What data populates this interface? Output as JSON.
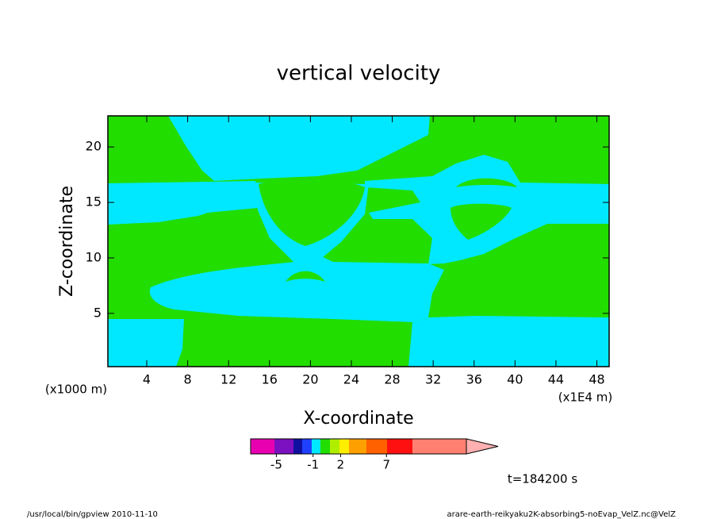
{
  "chart_data": {
    "type": "contour",
    "title": "vertical velocity",
    "x_label": "X-coordinate",
    "y_label": "Z-coordinate",
    "y_unit": "(x1000 m)",
    "x_unit": "(x1E4 m)",
    "xlim": [
      0.2,
      49.2
    ],
    "xticks": [
      4,
      8,
      12,
      16,
      20,
      24,
      28,
      32,
      36,
      40,
      44,
      48
    ],
    "ylim": [
      0.2,
      22.8
    ],
    "yticks": [
      5,
      10,
      15,
      20
    ],
    "colorbar": {
      "lim": [
        -7.8,
        15.7
      ],
      "ticks": [
        -5,
        -1,
        2,
        7
      ]
    },
    "time": "t=184200 s",
    "footer_left": "/usr/local/bin/gpview  2010-11-10",
    "footer_right": "arare-earth-reikyaku2K-absorbing5-noEvap_VelZ.nc@VelZ"
  }
}
